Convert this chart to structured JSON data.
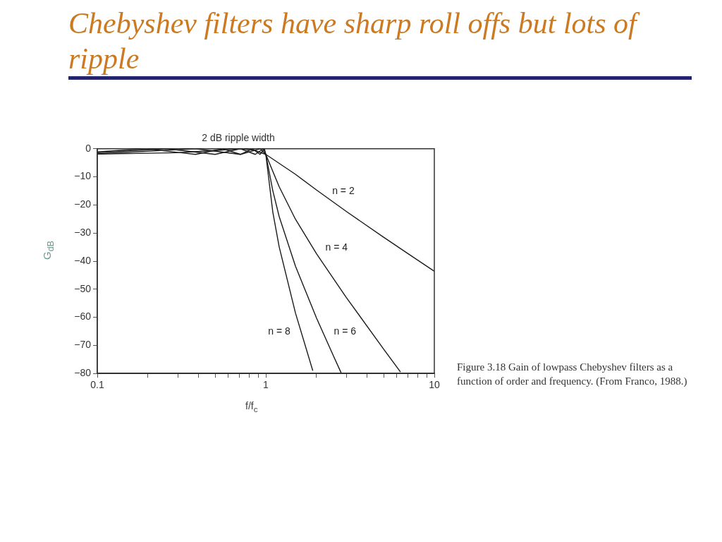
{
  "chart_data": {
    "type": "line",
    "title": "Chebyshev filters have sharp roll offs but lots of ripple",
    "subtitle": "2 dB ripple width",
    "xlabel": "f/f$_{c}$",
    "ylabel": "G$_{dB}$",
    "log": "x",
    "xlim": [
      0.1,
      10
    ],
    "ylim": [
      -80,
      0
    ],
    "xticks": [
      0.1,
      {
        "value": 0.2,
        "label": null
      },
      {
        "value": 0.3,
        "label": null
      },
      {
        "value": 0.4,
        "label": null
      },
      {
        "value": 0.5,
        "label": null
      },
      {
        "value": 0.6,
        "label": null
      },
      {
        "value": 0.7,
        "label": null
      },
      {
        "value": 0.8,
        "label": null
      },
      {
        "value": 0.9,
        "label": null
      },
      1,
      {
        "value": 2,
        "label": null
      },
      {
        "value": 3,
        "label": null
      },
      {
        "value": 4,
        "label": null
      },
      {
        "value": 5,
        "label": null
      },
      {
        "value": 6,
        "label": null
      },
      {
        "value": 7,
        "label": null
      },
      {
        "value": 8,
        "label": null
      },
      {
        "value": 9,
        "label": null
      },
      10
    ],
    "yticks": [
      -80,
      -70,
      -60,
      -50,
      -40,
      -30,
      -20,
      -10,
      0
    ],
    "grid": false,
    "legend": false,
    "marker": "none",
    "line_style": "solid",
    "series": [
      {
        "name": "n = 2",
        "color": "#1a1a1a",
        "x": [
          0.1,
          0.3,
          0.5,
          0.707,
          0.85,
          1,
          1.5,
          2,
          3,
          5,
          7,
          10
        ],
        "values": [
          -1.9,
          -1.4,
          -0.6,
          0,
          -0.5,
          -2,
          -9.1,
          -14.7,
          -22.3,
          -31.5,
          -37.4,
          -43.6
        ]
      },
      {
        "name": "n = 4",
        "color": "#1a1a1a",
        "x": [
          0.1,
          0.383,
          0.707,
          0.924,
          1,
          1.2,
          1.5,
          2,
          3,
          5,
          6.3
        ],
        "values": [
          -1.8,
          0,
          -2,
          0,
          -2,
          -13.5,
          -25.1,
          -37.4,
          -52.9,
          -71.3,
          -79.5
        ]
      },
      {
        "name": "n = 6",
        "color": "#1a1a1a",
        "x": [
          0.1,
          0.259,
          0.5,
          0.707,
          0.866,
          0.966,
          1,
          1.1,
          1.2,
          1.5,
          2,
          2.5,
          2.8
        ],
        "values": [
          -1.4,
          0,
          -2,
          0,
          -2,
          0,
          -2,
          -14.9,
          -24.1,
          -41.8,
          -60.3,
          -73.3,
          -79.8
        ]
      },
      {
        "name": "n = 8",
        "color": "#1a1a1a",
        "x": [
          0.1,
          0.195,
          0.383,
          0.556,
          0.707,
          0.831,
          0.924,
          0.981,
          1,
          1.1,
          1.2,
          1.5,
          1.9
        ],
        "values": [
          -1.1,
          0,
          -2,
          0,
          -2,
          0,
          -2,
          0,
          -2,
          -22.5,
          -34.9,
          -58.5,
          -79
        ]
      }
    ],
    "annotations": [
      "Figure 3.18    Gain of lowpass Chebyshev filters as a function of order and frequency. (From Franco, 1988.)"
    ]
  }
}
